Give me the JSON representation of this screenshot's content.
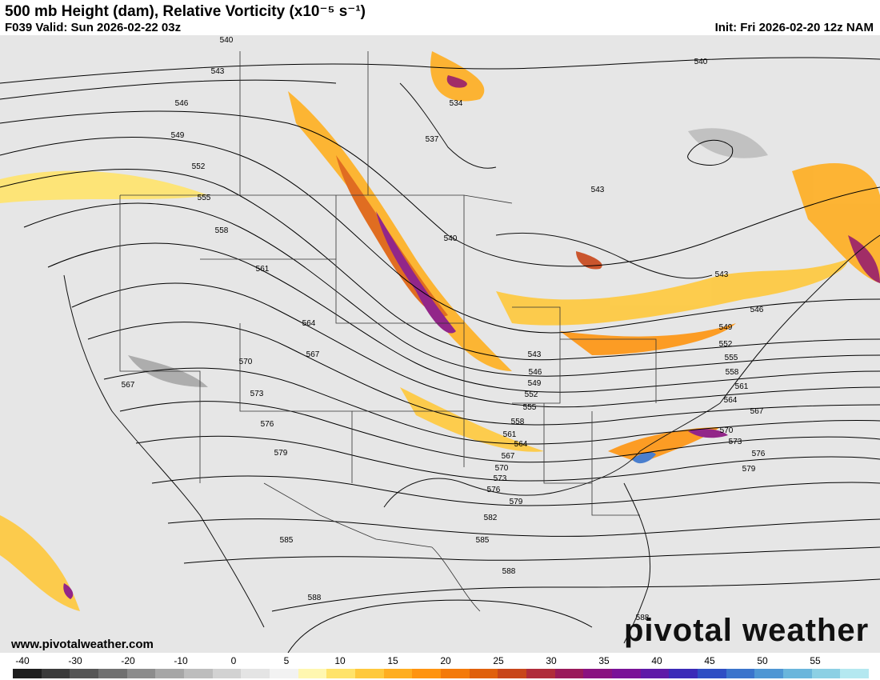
{
  "header": {
    "title": "500 mb Height (dam), Relative Vorticity (x10⁻⁵ s⁻¹)",
    "valid": "F039 Valid: Sun 2026-02-22 03z",
    "init": "Init: Fri 2026-02-20 12z NAM"
  },
  "footer": {
    "url": "www.pivotalweather.com",
    "brand": "pivotal weather"
  },
  "colorbar": {
    "ticks": [
      "-40",
      "-30",
      "-20",
      "-10",
      "0",
      "5",
      "10",
      "15",
      "20",
      "25",
      "30",
      "35",
      "40",
      "45",
      "50",
      "55"
    ],
    "colors": [
      "#1e1e1e",
      "#3a3a3a",
      "#555555",
      "#707070",
      "#8c8c8c",
      "#a6a6a6",
      "#bdbdbd",
      "#d2d2d2",
      "#e4e4e4",
      "#f2f2f2",
      "#fff7b0",
      "#ffe36a",
      "#ffc93c",
      "#ffae20",
      "#ff9410",
      "#f47a0a",
      "#e0600c",
      "#c8461a",
      "#b02c3a",
      "#9a1a5a",
      "#8a1280",
      "#7a1298",
      "#5e1aa8",
      "#3a2ab8",
      "#2e4ec4",
      "#3a74cc",
      "#4e96d4",
      "#6ab6dc",
      "#8cd0e4",
      "#b4e8f0"
    ]
  },
  "contours": {
    "labels": [
      "540",
      "543",
      "546",
      "549",
      "552",
      "555",
      "558",
      "561",
      "564",
      "567",
      "570",
      "573",
      "576",
      "579",
      "582",
      "585",
      "588",
      "534",
      "537"
    ]
  }
}
